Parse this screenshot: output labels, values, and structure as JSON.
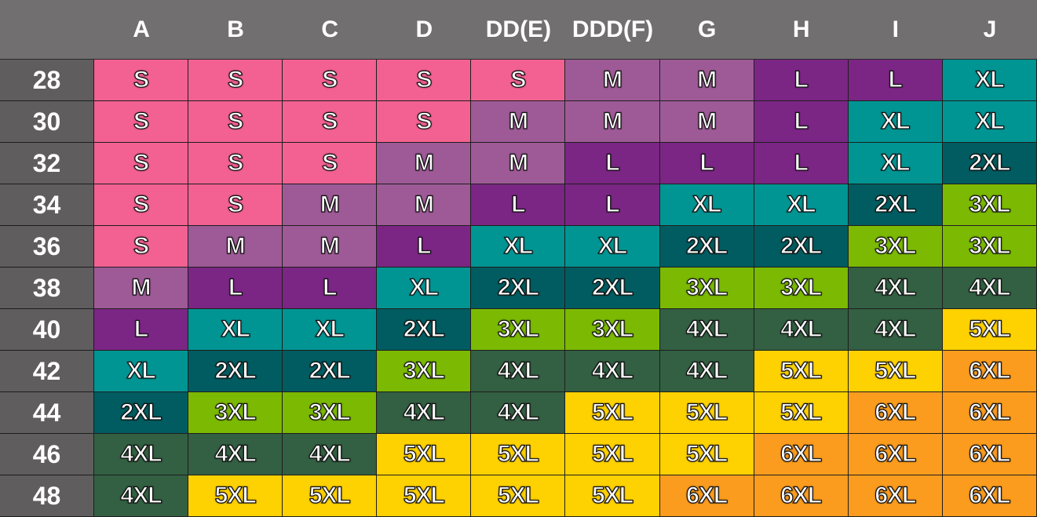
{
  "cup_sizes": [
    "A",
    "B",
    "C",
    "D",
    "DD(E)",
    "DDD(F)",
    "G",
    "H",
    "I",
    "J"
  ],
  "band_sizes": [
    "28",
    "30",
    "32",
    "34",
    "36",
    "38",
    "40",
    "42",
    "44",
    "46",
    "48"
  ],
  "size_colors": {
    "S": "#f26191",
    "M": "#9e5a96",
    "L": "#7b2684",
    "XL": "#009593",
    "2XL": "#005c60",
    "3XL": "#7bb902",
    "4XL": "#335f42",
    "5XL": "#fed100",
    "6XL": "#fb9c1e"
  },
  "rows": [
    [
      "S",
      "S",
      "S",
      "S",
      "S",
      "M",
      "M",
      "L",
      "L",
      "XL"
    ],
    [
      "S",
      "S",
      "S",
      "S",
      "M",
      "M",
      "M",
      "L",
      "XL",
      "XL"
    ],
    [
      "S",
      "S",
      "S",
      "M",
      "M",
      "L",
      "L",
      "L",
      "XL",
      "2XL"
    ],
    [
      "S",
      "S",
      "M",
      "M",
      "L",
      "L",
      "XL",
      "XL",
      "2XL",
      "3XL"
    ],
    [
      "S",
      "M",
      "M",
      "L",
      "XL",
      "XL",
      "2XL",
      "2XL",
      "3XL",
      "3XL"
    ],
    [
      "M",
      "L",
      "L",
      "XL",
      "2XL",
      "2XL",
      "3XL",
      "3XL",
      "4XL",
      "4XL"
    ],
    [
      "L",
      "XL",
      "XL",
      "2XL",
      "3XL",
      "3XL",
      "4XL",
      "4XL",
      "4XL",
      "5XL"
    ],
    [
      "XL",
      "2XL",
      "2XL",
      "3XL",
      "4XL",
      "4XL",
      "4XL",
      "5XL",
      "5XL",
      "6XL"
    ],
    [
      "2XL",
      "3XL",
      "3XL",
      "4XL",
      "4XL",
      "5XL",
      "5XL",
      "5XL",
      "6XL",
      "6XL"
    ],
    [
      "4XL",
      "4XL",
      "4XL",
      "5XL",
      "5XL",
      "5XL",
      "5XL",
      "6XL",
      "6XL",
      "6XL"
    ],
    [
      "4XL",
      "5XL",
      "5XL",
      "5XL",
      "5XL",
      "5XL",
      "6XL",
      "6XL",
      "6XL",
      "6XL"
    ]
  ]
}
